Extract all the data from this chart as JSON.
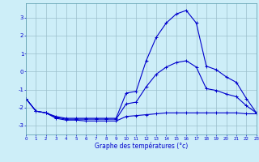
{
  "hours": [
    0,
    1,
    2,
    3,
    4,
    5,
    6,
    7,
    8,
    9,
    10,
    11,
    12,
    13,
    14,
    15,
    16,
    17,
    18,
    19,
    20,
    21,
    22,
    23
  ],
  "temp_max": [
    -1.5,
    -2.2,
    -2.3,
    -2.5,
    -2.6,
    -2.6,
    -2.6,
    -2.6,
    -2.6,
    -2.6,
    -1.2,
    -1.1,
    0.6,
    1.9,
    2.7,
    3.2,
    3.4,
    2.7,
    0.3,
    0.1,
    -0.3,
    -0.6,
    -1.5,
    -2.3
  ],
  "temp_min": [
    -1.5,
    -2.2,
    -2.3,
    -2.6,
    -2.7,
    -2.7,
    -2.75,
    -2.75,
    -2.75,
    -2.75,
    -2.5,
    -2.45,
    -2.4,
    -2.35,
    -2.3,
    -2.3,
    -2.3,
    -2.3,
    -2.3,
    -2.3,
    -2.3,
    -2.3,
    -2.35,
    -2.35
  ],
  "temp_avg": [
    -1.5,
    -2.2,
    -2.3,
    -2.55,
    -2.65,
    -2.65,
    -2.65,
    -2.65,
    -2.65,
    -2.65,
    -1.8,
    -1.7,
    -0.85,
    -0.15,
    0.25,
    0.5,
    0.6,
    0.25,
    -0.95,
    -1.05,
    -1.25,
    -1.4,
    -1.9,
    -2.3
  ],
  "bg_color": "#cdeef8",
  "grid_color": "#9bbfcc",
  "line_color": "#0000cc",
  "xlabel": "Graphe des températures (°c)",
  "xlim": [
    0,
    23
  ],
  "ylim": [
    -3.5,
    3.8
  ],
  "yticks": [
    -3,
    -2,
    -1,
    0,
    1,
    2,
    3
  ],
  "xticks": [
    0,
    1,
    2,
    3,
    4,
    5,
    6,
    7,
    8,
    9,
    10,
    11,
    12,
    13,
    14,
    15,
    16,
    17,
    18,
    19,
    20,
    21,
    22,
    23
  ]
}
